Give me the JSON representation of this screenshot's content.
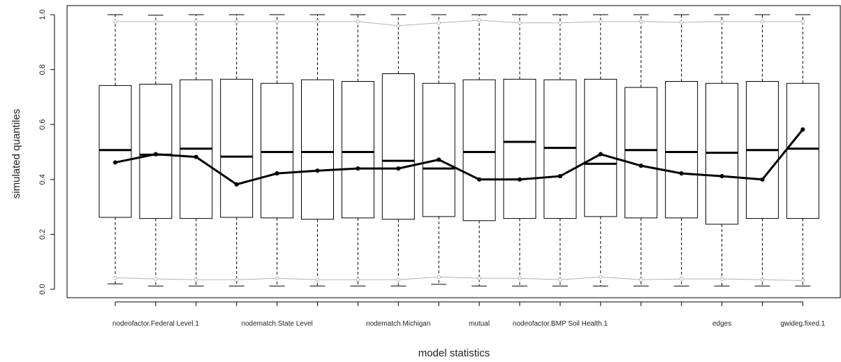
{
  "chart_data": {
    "type": "boxplot",
    "title": "",
    "xlabel": "model statistics",
    "ylabel": "simulated quantiles",
    "ylim": [
      0,
      1
    ],
    "yticks": [
      0.0,
      0.2,
      0.4,
      0.6,
      0.8,
      1.0
    ],
    "ytick_labels": [
      "0.0",
      "0.2",
      "0.4",
      "0.6",
      "0.8",
      "1.0"
    ],
    "grid": false,
    "x_tick_labels": [
      {
        "position": 2,
        "label": "nodeofactor.Federal Level.1"
      },
      {
        "position": 5,
        "label": "nodematch.State Level"
      },
      {
        "position": 8,
        "label": "nodematch.Michigan"
      },
      {
        "position": 10,
        "label": "mutual"
      },
      {
        "position": 12,
        "label": "nodeofactor.BMP Soil Health.1"
      },
      {
        "position": 16,
        "label": "edges"
      },
      {
        "position": 18,
        "label": "gwideg.fixed.1"
      }
    ],
    "boxes": [
      {
        "position": 1,
        "whisker_low": 0.02,
        "q1": 0.262,
        "median": 0.507,
        "q3": 0.742,
        "whisker_high": 1.0
      },
      {
        "position": 2,
        "whisker_low": 0.012,
        "q1": 0.258,
        "median": 0.49,
        "q3": 0.747,
        "whisker_high": 0.998
      },
      {
        "position": 3,
        "whisker_low": 0.012,
        "q1": 0.258,
        "median": 0.512,
        "q3": 0.763,
        "whisker_high": 1.0
      },
      {
        "position": 4,
        "whisker_low": 0.012,
        "q1": 0.262,
        "median": 0.483,
        "q3": 0.765,
        "whisker_high": 1.0
      },
      {
        "position": 5,
        "whisker_low": 0.012,
        "q1": 0.26,
        "median": 0.5,
        "q3": 0.75,
        "whisker_high": 1.0
      },
      {
        "position": 6,
        "whisker_low": 0.012,
        "q1": 0.255,
        "median": 0.5,
        "q3": 0.763,
        "whisker_high": 1.0
      },
      {
        "position": 7,
        "whisker_low": 0.012,
        "q1": 0.26,
        "median": 0.5,
        "q3": 0.757,
        "whisker_high": 1.0
      },
      {
        "position": 8,
        "whisker_low": 0.012,
        "q1": 0.255,
        "median": 0.468,
        "q3": 0.785,
        "whisker_high": 1.0
      },
      {
        "position": 9,
        "whisker_low": 0.018,
        "q1": 0.265,
        "median": 0.44,
        "q3": 0.75,
        "whisker_high": 1.0
      },
      {
        "position": 10,
        "whisker_low": 0.012,
        "q1": 0.25,
        "median": 0.5,
        "q3": 0.763,
        "whisker_high": 1.0
      },
      {
        "position": 11,
        "whisker_low": 0.012,
        "q1": 0.258,
        "median": 0.537,
        "q3": 0.765,
        "whisker_high": 1.0
      },
      {
        "position": 12,
        "whisker_low": 0.012,
        "q1": 0.258,
        "median": 0.515,
        "q3": 0.763,
        "whisker_high": 1.0
      },
      {
        "position": 13,
        "whisker_low": 0.012,
        "q1": 0.265,
        "median": 0.457,
        "q3": 0.765,
        "whisker_high": 1.0
      },
      {
        "position": 14,
        "whisker_low": 0.012,
        "q1": 0.26,
        "median": 0.507,
        "q3": 0.735,
        "whisker_high": 1.0
      },
      {
        "position": 15,
        "whisker_low": 0.012,
        "q1": 0.26,
        "median": 0.5,
        "q3": 0.757,
        "whisker_high": 1.0
      },
      {
        "position": 16,
        "whisker_low": 0.012,
        "q1": 0.237,
        "median": 0.497,
        "q3": 0.75,
        "whisker_high": 1.0
      },
      {
        "position": 17,
        "whisker_low": 0.012,
        "q1": 0.258,
        "median": 0.507,
        "q3": 0.757,
        "whisker_high": 1.0
      },
      {
        "position": 18,
        "whisker_low": 0.012,
        "q1": 0.258,
        "median": 0.512,
        "q3": 0.75,
        "whisker_high": 1.0
      }
    ],
    "observed_line": [
      0.462,
      0.492,
      0.482,
      0.382,
      0.422,
      0.432,
      0.44,
      0.44,
      0.472,
      0.4,
      0.4,
      0.412,
      0.492,
      0.45,
      0.422,
      0.412,
      0.4,
      0.582
    ],
    "upper_bound_line": [
      0.975,
      0.975,
      0.975,
      0.975,
      0.975,
      0.975,
      0.975,
      0.96,
      0.97,
      0.98,
      0.97,
      0.97,
      0.975,
      0.975,
      0.972,
      0.975,
      0.975,
      0.975
    ],
    "lower_bound_line": [
      0.042,
      0.038,
      0.035,
      0.035,
      0.04,
      0.035,
      0.035,
      0.035,
      0.045,
      0.04,
      0.04,
      0.035,
      0.045,
      0.035,
      0.038,
      0.038,
      0.035,
      0.032
    ],
    "colors": {
      "box_stroke": "#000000",
      "median": "#000000",
      "observed_line": "#000000",
      "bound_lines": "#b3b3b3",
      "frame": "#000000"
    }
  }
}
